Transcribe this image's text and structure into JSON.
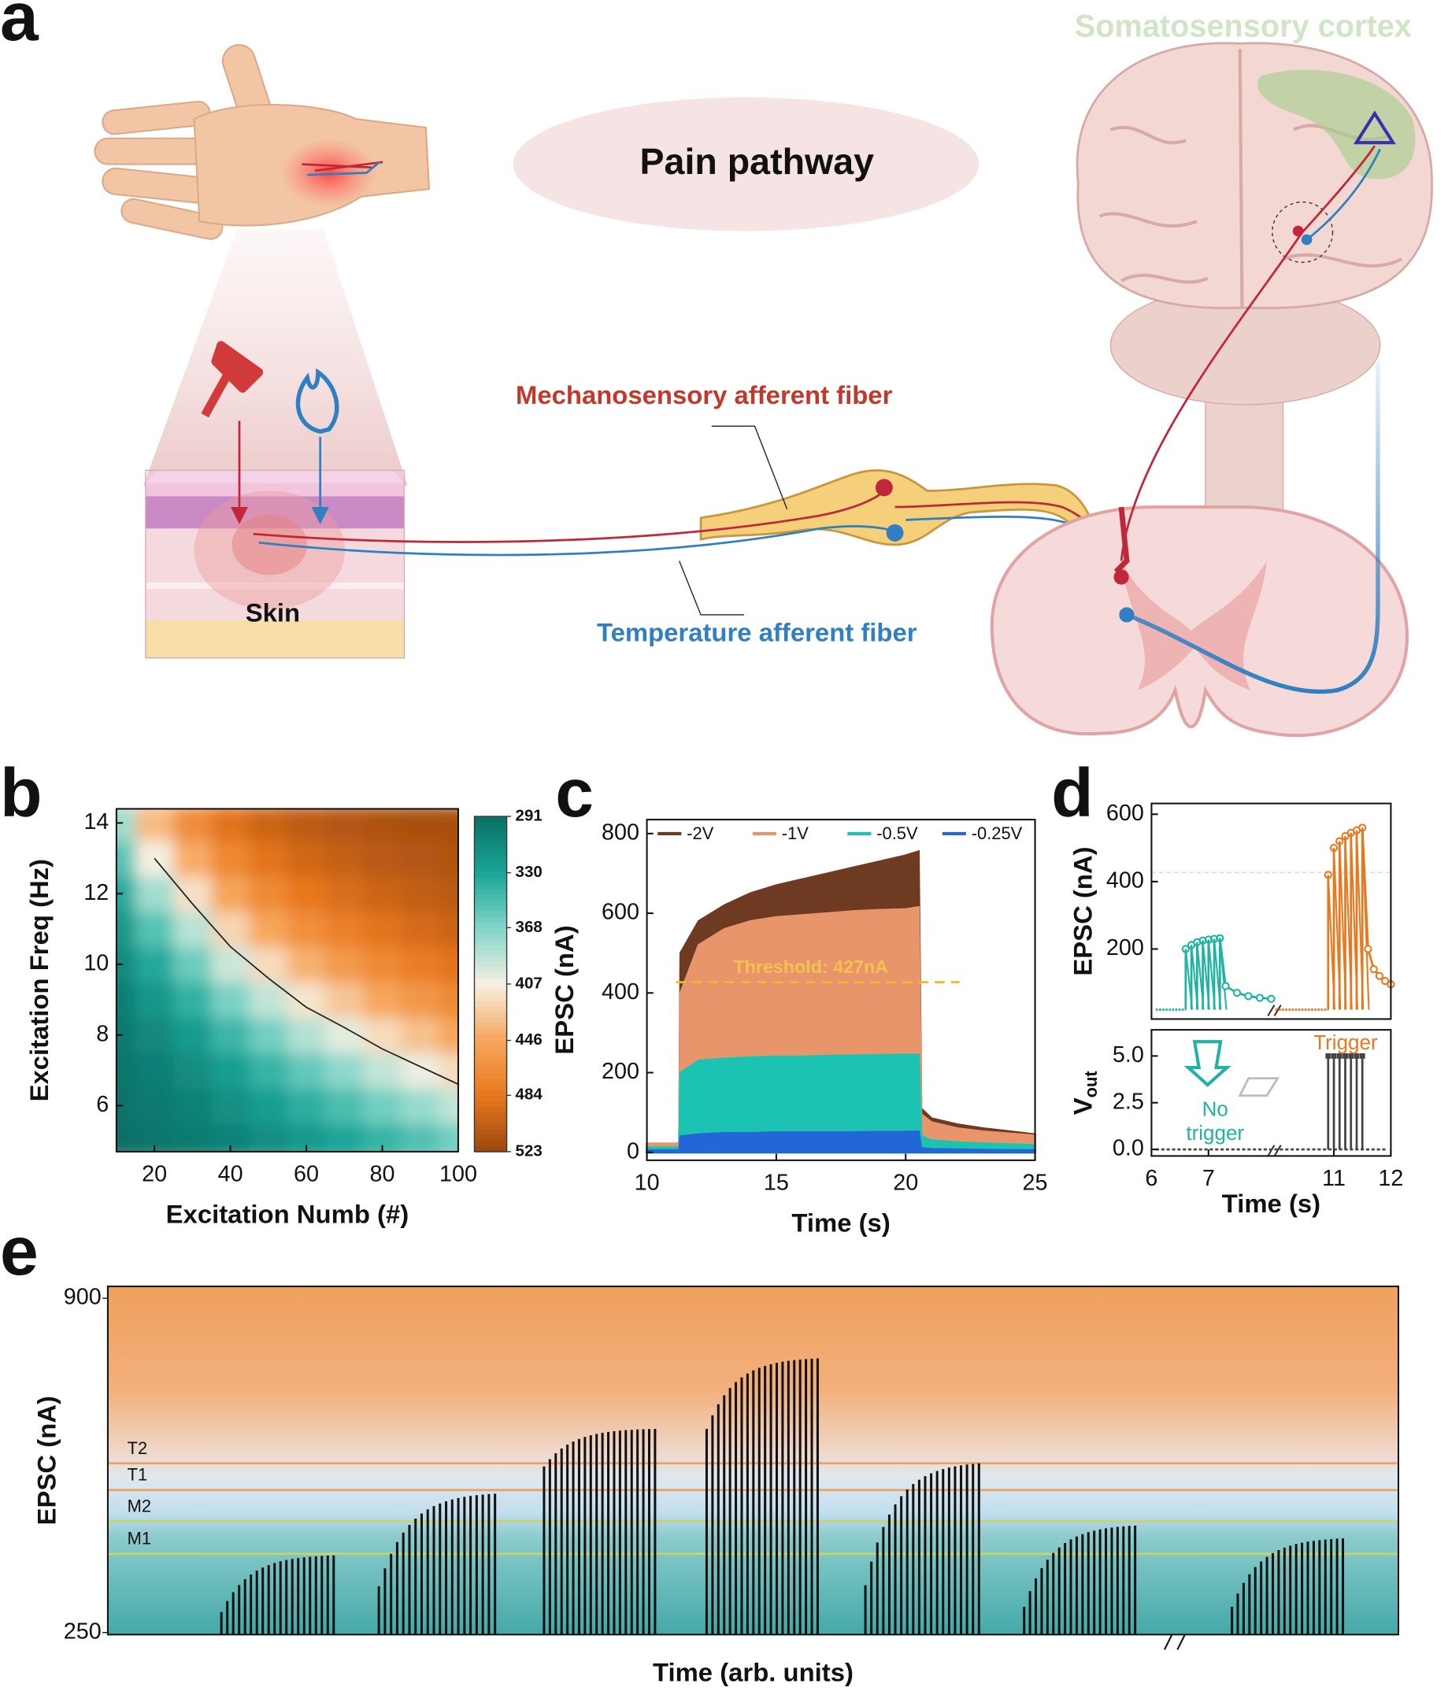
{
  "figure": {
    "panel_a": {
      "label": "a",
      "cortex": "Somatosensory cortex",
      "title": "Pain pathway",
      "mechano": "Mechanosensory afferent fiber",
      "temperature": "Temperature afferent fiber",
      "skin": "Skin"
    }
  },
  "chart_data": [
    {
      "type": "heatmap",
      "panel": "b",
      "xlabel": "Excitation Numb (#)",
      "ylabel": "Excitation Freq (Hz)",
      "x": [
        10,
        20,
        30,
        40,
        50,
        60,
        70,
        80,
        90,
        100
      ],
      "y": [
        5,
        6,
        7,
        8,
        9,
        10,
        11,
        12,
        13,
        14
      ],
      "values": [
        [
          292,
          295,
          299,
          305,
          313,
          322,
          330,
          341,
          351,
          363
        ],
        [
          294,
          298,
          304,
          314,
          325,
          337,
          349,
          363,
          376,
          390
        ],
        [
          295,
          302,
          312,
          326,
          341,
          358,
          373,
          390,
          404,
          418
        ],
        [
          298,
          309,
          323,
          343,
          363,
          385,
          401,
          418,
          432,
          446
        ],
        [
          302,
          319,
          339,
          366,
          390,
          413,
          429,
          446,
          458,
          469
        ],
        [
          309,
          333,
          361,
          393,
          418,
          440,
          456,
          469,
          479,
          487
        ],
        [
          319,
          353,
          387,
          421,
          446,
          465,
          477,
          487,
          494,
          499
        ],
        [
          333,
          379,
          415,
          448,
          469,
          484,
          492,
          499,
          504,
          508
        ],
        [
          353,
          407,
          443,
          471,
          487,
          497,
          503,
          508,
          511,
          514
        ],
        [
          379,
          435,
          467,
          488,
          499,
          506,
          511,
          514,
          516,
          517
        ]
      ],
      "xlim": [
        10,
        100
      ],
      "xticks": [
        20,
        40,
        60,
        80,
        100
      ],
      "ylim": [
        4.7,
        14.4
      ],
      "yticks": [
        6,
        8,
        10,
        12,
        14
      ],
      "clim": [
        291,
        523
      ],
      "cticks": [
        291,
        330,
        368,
        407,
        446,
        484,
        523
      ],
      "colors": [
        "#0b6f66",
        "#1aa597",
        "#7fd5c7",
        "#f5f0e3",
        "#f7a65c",
        "#e8781e",
        "#9c470d"
      ],
      "contour": 407
    },
    {
      "type": "area",
      "panel": "c",
      "xlabel": "Time (s)",
      "ylabel": "EPSC (nA)",
      "x": [
        10,
        11.25,
        11.3,
        12,
        13,
        14,
        15,
        16,
        17,
        18,
        19,
        20,
        20.5,
        20.6,
        21,
        22,
        23,
        25
      ],
      "series": [
        {
          "name": "-2V",
          "color": "#6e3b22",
          "values": [
            20,
            20,
            500,
            580,
            620,
            650,
            670,
            685,
            700,
            715,
            730,
            745,
            755,
            110,
            85,
            70,
            60,
            45
          ]
        },
        {
          "name": "-1V",
          "color": "#e8956b",
          "values": [
            22,
            22,
            400,
            520,
            560,
            580,
            590,
            595,
            600,
            605,
            608,
            610,
            615,
            95,
            75,
            60,
            52,
            42
          ]
        },
        {
          "name": "-0.5V",
          "color": "#1cc3b2",
          "values": [
            12,
            12,
            200,
            230,
            235,
            238,
            240,
            240,
            242,
            243,
            244,
            245,
            245,
            40,
            30,
            25,
            22,
            18
          ]
        },
        {
          "name": "-0.25V",
          "color": "#2266d8",
          "values": [
            5,
            5,
            40,
            45,
            48,
            48,
            50,
            50,
            50,
            50,
            51,
            51,
            52,
            10,
            8,
            7,
            6,
            5
          ]
        }
      ],
      "xlim": [
        10,
        25
      ],
      "xticks": [
        10,
        15,
        20,
        25
      ],
      "ylim": [
        -20,
        835
      ],
      "yticks": [
        0,
        200,
        400,
        600,
        800
      ],
      "threshold": {
        "value": 427,
        "label": "Threshold: 427nA"
      }
    },
    {
      "type": "spikes",
      "panel": "d",
      "ylabel": "EPSC (nA)",
      "xlim_segments": [
        [
          6,
          8.1
        ],
        [
          9.9,
          12
        ]
      ],
      "ylim": [
        -8,
        632
      ],
      "yticks": [
        200,
        400,
        600
      ],
      "baseline": 20,
      "threshold": 427,
      "series": [
        {
          "color": "#1fb3a3",
          "x": [
            6.6,
            6.7,
            6.8,
            6.9,
            7.0,
            7.1,
            7.2
          ],
          "values": [
            200,
            212,
            220,
            225,
            228,
            230,
            232
          ],
          "decay_x": [
            7.3,
            7.5,
            7.7,
            7.9,
            8.1
          ],
          "decay_values": [
            90,
            70,
            60,
            55,
            52
          ]
        },
        {
          "color": "#e8781e",
          "x": [
            10.9,
            11.0,
            11.1,
            11.2,
            11.3,
            11.4,
            11.5
          ],
          "values": [
            420,
            500,
            520,
            535,
            545,
            552,
            560
          ],
          "decay_x": [
            11.6,
            11.7,
            11.8,
            11.9,
            12.0
          ],
          "decay_values": [
            200,
            140,
            120,
            105,
            95
          ]
        }
      ]
    },
    {
      "type": "trigger",
      "ylabel": "V",
      "ylabel_sub": "out",
      "xlabel": "Time (s)",
      "xlim_segments": [
        [
          6,
          8.1
        ],
        [
          9.9,
          12
        ]
      ],
      "xticks": [
        6,
        7,
        11,
        12
      ],
      "ylim": [
        -0.35,
        6.4
      ],
      "yticks": [
        {
          "value": 0,
          "label": "0.0"
        },
        {
          "value": 2.5,
          "label": "2.5"
        },
        {
          "value": 5,
          "label": "5.0"
        }
      ],
      "x": [
        10.9,
        11.0,
        11.1,
        11.2,
        11.3,
        11.4,
        11.5
      ],
      "values": [
        5,
        5,
        5,
        5,
        5,
        5,
        5
      ],
      "color": "#444444",
      "annotations": [
        {
          "lines": [
            "No",
            "trigger"
          ],
          "color": "#1fb3a3"
        },
        {
          "lines": [
            "Trigger"
          ],
          "color": "#e8781e"
        }
      ]
    },
    {
      "type": "pulse_train",
      "panel": "e",
      "xlabel": "Time (arb. units)",
      "ylabel": "EPSC (nA)",
      "xlim": [
        0,
        100
      ],
      "ylim": [
        246,
        923
      ],
      "yticks": [
        250,
        900
      ],
      "levels": [
        {
          "name": "T2",
          "value": 579,
          "color": "#f0a060"
        },
        {
          "name": "T1",
          "value": 527,
          "color": "#f0a060"
        },
        {
          "name": "M2",
          "value": 466,
          "color": "#c5d56a"
        },
        {
          "name": "M1",
          "value": 403,
          "color": "#c5d56a"
        }
      ],
      "groups": [
        {
          "x": [
            8.8,
            17.5
          ],
          "values": [
            290,
            400
          ]
        },
        {
          "x": [
            21,
            30
          ],
          "values": [
            340,
            520
          ]
        },
        {
          "x": [
            33.8,
            42.4
          ],
          "values": [
            573,
            646
          ]
        },
        {
          "x": [
            46.4,
            55
          ],
          "values": [
            646,
            783
          ]
        },
        {
          "x": [
            58.7,
            67.5
          ],
          "values": [
            342,
            579
          ]
        },
        {
          "x": [
            71,
            79.6
          ],
          "values": [
            300,
            458
          ]
        },
        {
          "x": [
            87.1,
            95.7
          ],
          "values": [
            300,
            433
          ]
        }
      ]
    }
  ]
}
